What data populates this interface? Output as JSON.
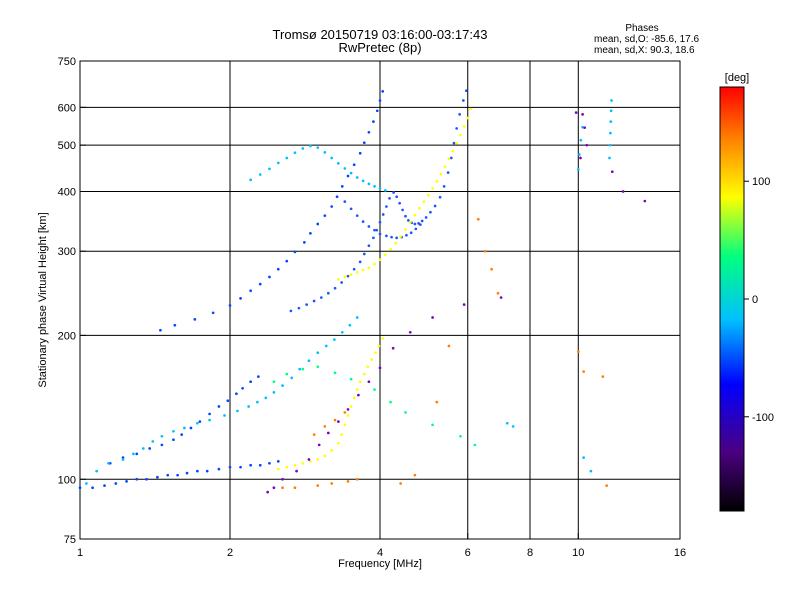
{
  "figure": {
    "title_line1": "Tromsø 20150719 03:16:00-03:17:43",
    "title_line2": "RwPretec (8p)",
    "stats_title": "Phases",
    "stats_o": "mean, sd,O: -85.6, 17.6",
    "stats_x": "mean, sd,X:  90.3, 18.6",
    "colorbar_label": "[deg]"
  },
  "chart_data": {
    "type": "scatter",
    "title": "Tromsø 20150719 03:16:00-03:17:43",
    "subtitle": "RwPretec (8p)",
    "xlabel": "Frequency [MHz]",
    "ylabel": "Stationary phase Virtual Height [km]",
    "x_scale": "log",
    "y_scale": "log",
    "xlim": [
      1,
      16
    ],
    "ylim": [
      75,
      750
    ],
    "grid": true,
    "x_ticks": [
      1,
      2,
      4,
      6,
      8,
      10,
      16
    ],
    "y_ticks": [
      75,
      100,
      200,
      300,
      400,
      500,
      600,
      750
    ],
    "x_gridlines": [
      2,
      4,
      6,
      8,
      10
    ],
    "y_gridlines": [
      100,
      200,
      300,
      400,
      500,
      600
    ],
    "colorbar": {
      "label": "[deg]",
      "range": [
        -180,
        180
      ],
      "ticks": [
        100,
        0,
        -100
      ],
      "colors": [
        "#000000",
        "#4b0082",
        "#0000ff",
        "#00bfff",
        "#00ff7f",
        "#ffff00",
        "#ff7f00",
        "#ff0000"
      ]
    },
    "series": [
      {
        "color": "#0047ff",
        "points": [
          [
            1.0,
            96
          ],
          [
            1.06,
            96
          ],
          [
            1.12,
            97
          ],
          [
            1.18,
            98
          ],
          [
            1.24,
            99
          ],
          [
            1.3,
            100
          ],
          [
            1.36,
            100
          ],
          [
            1.43,
            101
          ],
          [
            1.5,
            102
          ],
          [
            1.57,
            102
          ],
          [
            1.64,
            103
          ],
          [
            1.72,
            104
          ],
          [
            1.8,
            104
          ],
          [
            1.9,
            105
          ],
          [
            2.0,
            106
          ],
          [
            2.1,
            106
          ],
          [
            2.2,
            107
          ],
          [
            2.3,
            107
          ],
          [
            2.4,
            108
          ],
          [
            2.5,
            109
          ],
          [
            1.15,
            108
          ],
          [
            1.22,
            111
          ],
          [
            1.3,
            113
          ],
          [
            1.38,
            116
          ],
          [
            1.46,
            118
          ],
          [
            1.54,
            121
          ],
          [
            1.6,
            124
          ],
          [
            1.67,
            128
          ],
          [
            1.74,
            132
          ],
          [
            1.82,
            137
          ],
          [
            1.9,
            142
          ],
          [
            1.98,
            146
          ],
          [
            2.06,
            151
          ],
          [
            2.12,
            155
          ],
          [
            2.2,
            160
          ],
          [
            2.28,
            164
          ],
          [
            1.45,
            205
          ],
          [
            1.55,
            210
          ],
          [
            1.7,
            216
          ],
          [
            1.85,
            223
          ],
          [
            2.0,
            231
          ],
          [
            2.1,
            239
          ],
          [
            2.2,
            248
          ],
          [
            2.3,
            256
          ],
          [
            2.4,
            265
          ],
          [
            2.5,
            275
          ],
          [
            2.6,
            286
          ],
          [
            2.7,
            299
          ],
          [
            2.82,
            313
          ],
          [
            2.9,
            327
          ],
          [
            3.0,
            342
          ],
          [
            3.1,
            356
          ],
          [
            3.2,
            372
          ],
          [
            3.28,
            390
          ],
          [
            3.36,
            410
          ],
          [
            3.45,
            431
          ],
          [
            3.55,
            455
          ],
          [
            3.65,
            481
          ],
          [
            3.72,
            506
          ],
          [
            3.8,
            532
          ],
          [
            3.88,
            560
          ],
          [
            3.95,
            590
          ],
          [
            4.0,
            620
          ],
          [
            4.05,
            648
          ]
        ]
      },
      {
        "color": "#1b55ff",
        "points": [
          [
            2.65,
            225
          ],
          [
            2.75,
            228
          ],
          [
            2.85,
            232
          ],
          [
            2.95,
            236
          ],
          [
            3.05,
            240
          ],
          [
            3.15,
            245
          ],
          [
            3.25,
            251
          ],
          [
            3.35,
            258
          ],
          [
            3.45,
            266
          ],
          [
            3.55,
            275
          ],
          [
            3.65,
            285
          ],
          [
            3.72,
            296
          ],
          [
            3.8,
            308
          ],
          [
            3.88,
            320
          ],
          [
            3.94,
            332
          ],
          [
            4.0,
            345
          ],
          [
            4.06,
            358
          ],
          [
            4.12,
            372
          ],
          [
            4.18,
            387
          ],
          [
            4.26,
            398
          ],
          [
            4.32,
            390
          ],
          [
            4.38,
            378
          ],
          [
            4.44,
            366
          ],
          [
            4.5,
            355
          ],
          [
            4.56,
            348
          ],
          [
            4.63,
            344
          ],
          [
            4.7,
            342
          ],
          [
            4.78,
            343
          ],
          [
            4.86,
            347
          ],
          [
            4.95,
            353
          ],
          [
            5.05,
            362
          ],
          [
            5.16,
            373
          ],
          [
            5.28,
            389
          ],
          [
            5.38,
            410
          ],
          [
            5.48,
            438
          ],
          [
            5.56,
            470
          ],
          [
            5.63,
            505
          ],
          [
            5.7,
            542
          ],
          [
            5.78,
            580
          ],
          [
            5.88,
            620
          ],
          [
            5.96,
            650
          ],
          [
            3.4,
            381
          ],
          [
            3.5,
            368
          ],
          [
            3.6,
            356
          ],
          [
            3.7,
            346
          ],
          [
            3.8,
            338
          ],
          [
            3.9,
            332
          ],
          [
            4.0,
            326
          ],
          [
            4.12,
            323
          ],
          [
            4.22,
            321
          ],
          [
            4.32,
            320
          ],
          [
            4.42,
            321
          ],
          [
            4.52,
            324
          ],
          [
            4.62,
            328
          ],
          [
            4.72,
            334
          ],
          [
            4.82,
            341
          ]
        ]
      },
      {
        "color": "#00bfff",
        "points": [
          [
            2.2,
            423
          ],
          [
            2.3,
            434
          ],
          [
            2.4,
            446
          ],
          [
            2.5,
            459
          ],
          [
            2.6,
            470
          ],
          [
            2.7,
            482
          ],
          [
            2.8,
            492
          ],
          [
            2.9,
            498
          ],
          [
            3.0,
            494
          ],
          [
            3.1,
            483
          ],
          [
            3.2,
            470
          ],
          [
            3.3,
            458
          ],
          [
            3.4,
            447
          ],
          [
            3.5,
            437
          ],
          [
            3.6,
            428
          ],
          [
            3.7,
            421
          ],
          [
            3.8,
            415
          ],
          [
            3.9,
            410
          ],
          [
            4.0,
            406
          ],
          [
            4.1,
            402
          ],
          [
            10.0,
            445
          ],
          [
            10.05,
            478
          ],
          [
            10.12,
            512
          ],
          [
            10.2,
            545
          ],
          [
            11.55,
            470
          ],
          [
            11.58,
            500
          ],
          [
            11.6,
            530
          ],
          [
            11.62,
            560
          ],
          [
            11.64,
            590
          ],
          [
            11.66,
            620
          ]
        ]
      },
      {
        "color": "#ffff00",
        "points": [
          [
            2.5,
            105
          ],
          [
            2.6,
            106
          ],
          [
            2.7,
            107
          ],
          [
            2.8,
            108
          ],
          [
            2.9,
            109
          ],
          [
            3.0,
            110
          ],
          [
            3.1,
            112
          ],
          [
            3.2,
            115
          ],
          [
            3.3,
            119
          ],
          [
            3.35,
            124
          ],
          [
            3.4,
            130
          ],
          [
            3.45,
            136
          ],
          [
            3.5,
            142
          ],
          [
            3.55,
            148
          ],
          [
            3.6,
            154
          ],
          [
            3.65,
            160
          ],
          [
            3.72,
            166
          ],
          [
            3.78,
            172
          ],
          [
            3.85,
            178
          ],
          [
            3.92,
            184
          ],
          [
            3.98,
            190
          ],
          [
            4.05,
            197
          ],
          [
            3.3,
            262
          ],
          [
            3.4,
            265
          ],
          [
            3.5,
            268
          ],
          [
            3.6,
            271
          ],
          [
            3.7,
            274
          ],
          [
            3.8,
            277
          ],
          [
            3.9,
            282
          ],
          [
            4.0,
            288
          ],
          [
            4.1,
            295
          ],
          [
            4.2,
            303
          ],
          [
            4.3,
            312
          ],
          [
            4.4,
            322
          ],
          [
            4.5,
            333
          ],
          [
            4.6,
            345
          ],
          [
            4.7,
            357
          ],
          [
            4.8,
            369
          ],
          [
            4.9,
            381
          ],
          [
            5.0,
            393
          ],
          [
            5.1,
            406
          ],
          [
            5.2,
            420
          ],
          [
            5.3,
            435
          ],
          [
            5.4,
            451
          ],
          [
            5.5,
            468
          ],
          [
            5.6,
            486
          ],
          [
            5.7,
            505
          ],
          [
            5.8,
            525
          ],
          [
            5.9,
            547
          ],
          [
            6.0,
            570
          ],
          [
            6.08,
            595
          ]
        ]
      },
      {
        "color": "#ff7f00",
        "points": [
          [
            2.55,
            96
          ],
          [
            2.7,
            96
          ],
          [
            3.0,
            97
          ],
          [
            3.2,
            98
          ],
          [
            3.45,
            99
          ],
          [
            3.6,
            100
          ],
          [
            2.95,
            124
          ],
          [
            3.1,
            129
          ],
          [
            3.25,
            133
          ],
          [
            3.4,
            138
          ],
          [
            4.4,
            98
          ],
          [
            4.7,
            102
          ],
          [
            5.2,
            145
          ],
          [
            5.5,
            190
          ],
          [
            6.3,
            350
          ],
          [
            6.5,
            300
          ],
          [
            6.7,
            275
          ],
          [
            6.9,
            245
          ],
          [
            10.0,
            185
          ],
          [
            10.25,
            168
          ],
          [
            11.2,
            164
          ],
          [
            11.4,
            97
          ]
        ]
      },
      {
        "color": "#7a00c2",
        "points": [
          [
            2.38,
            94
          ],
          [
            2.45,
            96
          ],
          [
            2.55,
            100
          ],
          [
            2.72,
            104
          ],
          [
            2.88,
            110
          ],
          [
            3.02,
            118
          ],
          [
            3.15,
            125
          ],
          [
            3.3,
            132
          ],
          [
            3.45,
            140
          ],
          [
            3.62,
            150
          ],
          [
            3.8,
            160
          ],
          [
            4.0,
            171
          ],
          [
            4.25,
            188
          ],
          [
            4.6,
            203
          ],
          [
            5.1,
            218
          ],
          [
            5.9,
            232
          ],
          [
            7.0,
            240
          ],
          [
            9.9,
            585
          ],
          [
            10.2,
            580
          ],
          [
            10.3,
            544
          ],
          [
            10.4,
            500
          ],
          [
            10.1,
            470
          ],
          [
            11.7,
            440
          ],
          [
            12.3,
            400
          ],
          [
            13.6,
            382
          ]
        ]
      },
      {
        "color": "#00ff7f",
        "points": [
          [
            2.45,
            160
          ],
          [
            2.6,
            166
          ],
          [
            2.8,
            170
          ],
          [
            3.0,
            172
          ],
          [
            3.25,
            167
          ],
          [
            3.5,
            162
          ],
          [
            3.9,
            154
          ],
          [
            4.2,
            145
          ],
          [
            4.5,
            138
          ],
          [
            5.1,
            130
          ],
          [
            5.8,
            123
          ],
          [
            6.2,
            118
          ]
        ]
      },
      {
        "color": "#00bfff",
        "points": [
          [
            1.03,
            98
          ],
          [
            1.08,
            104
          ],
          [
            1.14,
            108
          ],
          [
            1.22,
            110
          ],
          [
            1.28,
            113
          ],
          [
            1.34,
            116
          ],
          [
            1.4,
            120
          ],
          [
            1.46,
            123
          ],
          [
            1.54,
            126
          ],
          [
            1.62,
            128
          ],
          [
            1.72,
            131
          ],
          [
            1.82,
            133
          ],
          [
            1.95,
            136
          ],
          [
            2.07,
            139
          ],
          [
            2.18,
            142
          ],
          [
            2.27,
            145
          ],
          [
            2.36,
            148
          ],
          [
            2.45,
            152
          ],
          [
            2.55,
            157
          ],
          [
            2.66,
            163
          ],
          [
            2.76,
            170
          ],
          [
            2.88,
            177
          ],
          [
            3.0,
            184
          ],
          [
            3.12,
            190
          ],
          [
            3.24,
            196
          ],
          [
            3.36,
            203
          ],
          [
            3.48,
            210
          ],
          [
            3.6,
            218
          ],
          [
            7.2,
            131
          ],
          [
            7.4,
            129
          ],
          [
            10.25,
            111
          ],
          [
            10.6,
            104
          ]
        ]
      }
    ]
  }
}
